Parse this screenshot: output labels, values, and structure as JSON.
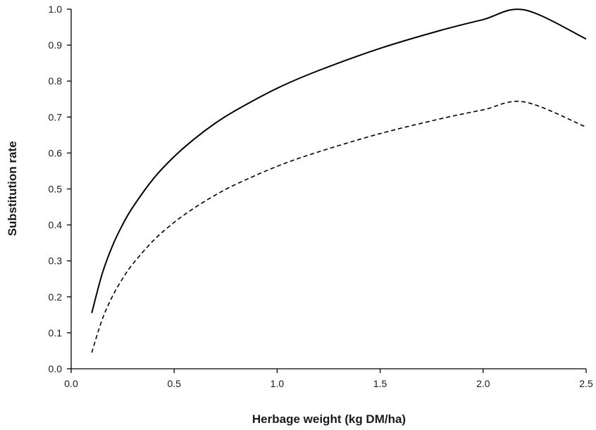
{
  "chart_data": {
    "type": "line",
    "title": "",
    "xlabel": "Herbage weight (kg DM/ha)",
    "ylabel": "Substitution rate",
    "xlim": [
      0.0,
      2.5
    ],
    "ylim": [
      0.0,
      1.0
    ],
    "xticks": [
      "0.0",
      "0.5",
      "1.0",
      "1.5",
      "2.0",
      "2.5"
    ],
    "yticks": [
      "0.0",
      "0.1",
      "0.2",
      "0.3",
      "0.4",
      "0.5",
      "0.6",
      "0.7",
      "0.8",
      "0.9",
      "1.0"
    ],
    "grid": false,
    "legend": "none",
    "series": [
      {
        "style": "solid",
        "color": "#000000",
        "x": [
          0.1,
          0.15,
          0.2,
          0.25,
          0.3,
          0.4,
          0.5,
          0.6,
          0.7,
          0.8,
          1.0,
          1.2,
          1.5,
          1.8,
          2.0,
          2.2,
          2.5
        ],
        "y": [
          0.155,
          0.263,
          0.341,
          0.401,
          0.45,
          0.529,
          0.59,
          0.64,
          0.683,
          0.719,
          0.78,
          0.829,
          0.891,
          0.942,
          0.971,
          0.998,
          0.917
        ]
      },
      {
        "style": "dashed",
        "color": "#000000",
        "x": [
          0.1,
          0.15,
          0.2,
          0.25,
          0.3,
          0.4,
          0.5,
          0.6,
          0.7,
          0.8,
          1.0,
          1.2,
          1.5,
          1.8,
          2.0,
          2.2,
          2.5
        ],
        "y": [
          0.045,
          0.136,
          0.201,
          0.251,
          0.292,
          0.357,
          0.407,
          0.448,
          0.483,
          0.513,
          0.563,
          0.603,
          0.654,
          0.696,
          0.72,
          0.742,
          0.672
        ]
      }
    ]
  }
}
